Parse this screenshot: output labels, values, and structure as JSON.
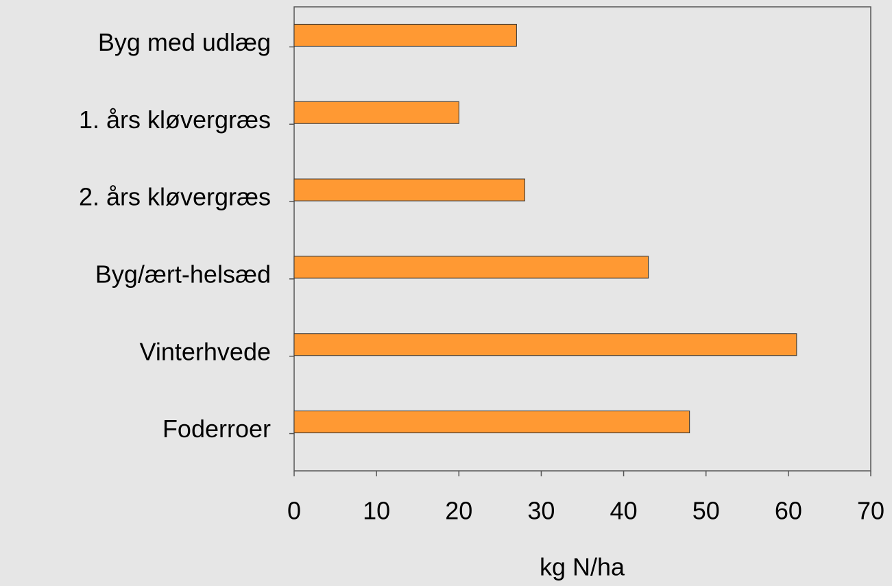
{
  "chart_data": {
    "type": "hbar",
    "xlabel": "kg N/ha",
    "categories": [
      "Byg med udlæg",
      "1. års kløvergræs",
      "2. års kløvergræs",
      "Byg/ært-helsæd",
      "Vinterhvede",
      "Foderroer"
    ],
    "values": [
      27,
      20,
      28,
      43,
      61,
      48
    ],
    "color": "#ff9933",
    "xlim": [
      0,
      70
    ],
    "xticks": [
      0,
      10,
      20,
      30,
      40,
      50,
      60,
      70
    ]
  }
}
